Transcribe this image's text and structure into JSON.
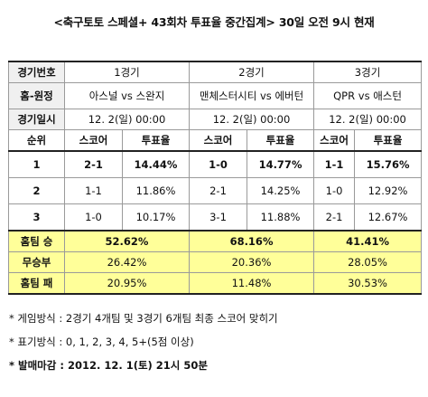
{
  "title": "<축구토토 스페셜+ 43회차 투표율 중간집계> 30일 오전 9시 현재",
  "table": {
    "game_no_label": "경기번호",
    "games": [
      "1경기",
      "2경기",
      "3경기"
    ],
    "matchup_label": "홈-원정",
    "matchups": [
      "아스널 vs 스완지",
      "맨체스터시티 vs 에버턴",
      "QPR vs 애스턴"
    ],
    "datetime_label": "경기일시",
    "datetimes": [
      "12. 2(일) 00:00",
      "12. 2(일) 00:00",
      "12. 2(일) 00:00"
    ],
    "rank_label": "순위",
    "score_label": "스코어",
    "vote_label": "투표율",
    "rows": [
      {
        "rank": "1",
        "g1_score": "2-1",
        "g1_vote": "14.44%",
        "g2_score": "1-0",
        "g2_vote": "14.77%",
        "g3_score": "1-1",
        "g3_vote": "15.76%"
      },
      {
        "rank": "2",
        "g1_score": "1-1",
        "g1_vote": "11.86%",
        "g2_score": "2-1",
        "g2_vote": "14.25%",
        "g3_score": "1-0",
        "g3_vote": "12.92%"
      },
      {
        "rank": "3",
        "g1_score": "1-0",
        "g1_vote": "10.17%",
        "g2_score": "3-1",
        "g2_vote": "11.88%",
        "g3_score": "2-1",
        "g3_vote": "12.67%"
      }
    ],
    "summary": [
      {
        "label": "홈팀 승",
        "values": [
          "52.62%",
          "68.16%",
          "41.41%"
        ]
      },
      {
        "label": "무승부",
        "values": [
          "26.42%",
          "20.36%",
          "28.05%"
        ]
      },
      {
        "label": "홈팀 패",
        "values": [
          "20.95%",
          "11.48%",
          "30.53%"
        ]
      }
    ]
  },
  "notes": [
    "* 게임방식 : 2경기 4개팀 및 3경기 6개팀 최종 스코어 맞히기",
    "* 표기방식 : 0, 1, 2, 3, 4, 5+(5점 이상)",
    "* 발매마감 : 2012. 12. 1(토) 21시 50분"
  ]
}
